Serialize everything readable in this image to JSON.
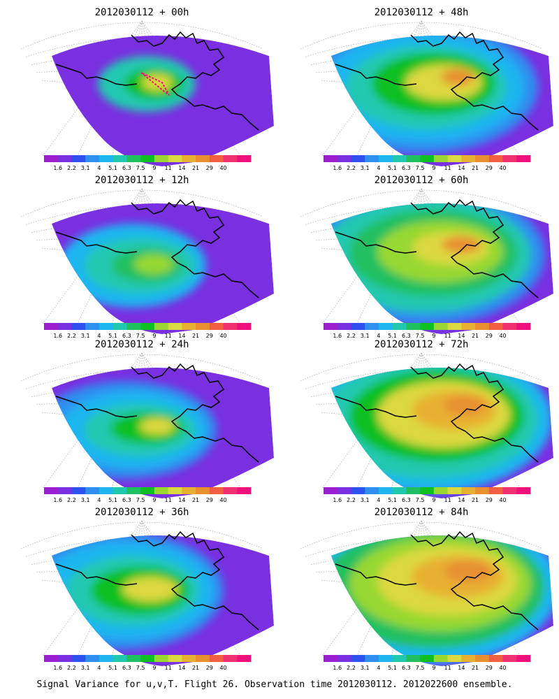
{
  "panels": [
    {
      "id": "p00",
      "title": "2012030112 + 00h",
      "stage": 0
    },
    {
      "id": "p48",
      "title": "2012030112 + 48h",
      "stage": 4
    },
    {
      "id": "p12",
      "title": "2012030112 + 12h",
      "stage": 1
    },
    {
      "id": "p60",
      "title": "2012030112 + 60h",
      "stage": 5
    },
    {
      "id": "p24",
      "title": "2012030112 + 24h",
      "stage": 2
    },
    {
      "id": "p72",
      "title": "2012030112 + 72h",
      "stage": 6
    },
    {
      "id": "p36",
      "title": "2012030112 + 36h",
      "stage": 3
    },
    {
      "id": "p84",
      "title": "2012030112 + 84h",
      "stage": 7
    }
  ],
  "colorbar": {
    "labels": [
      "1.6",
      "2.2",
      "3.1",
      "4",
      "5.1",
      "6.3",
      "7.5",
      "9",
      "11",
      "14",
      "21",
      "29",
      "40"
    ],
    "colors": [
      "#9a1fd0",
      "#7a2fe0",
      "#2f4fef",
      "#2f8ef0",
      "#1fb6f0",
      "#20c8b0",
      "#20c060",
      "#10c020",
      "#98d830",
      "#dcd840",
      "#e8b030",
      "#e89030",
      "#f06040",
      "#f03070",
      "#f0107c"
    ]
  },
  "caption": "Signal Variance for u,v,T. Flight 26. Observation time 2012030112. 2012022600 ensemble."
}
